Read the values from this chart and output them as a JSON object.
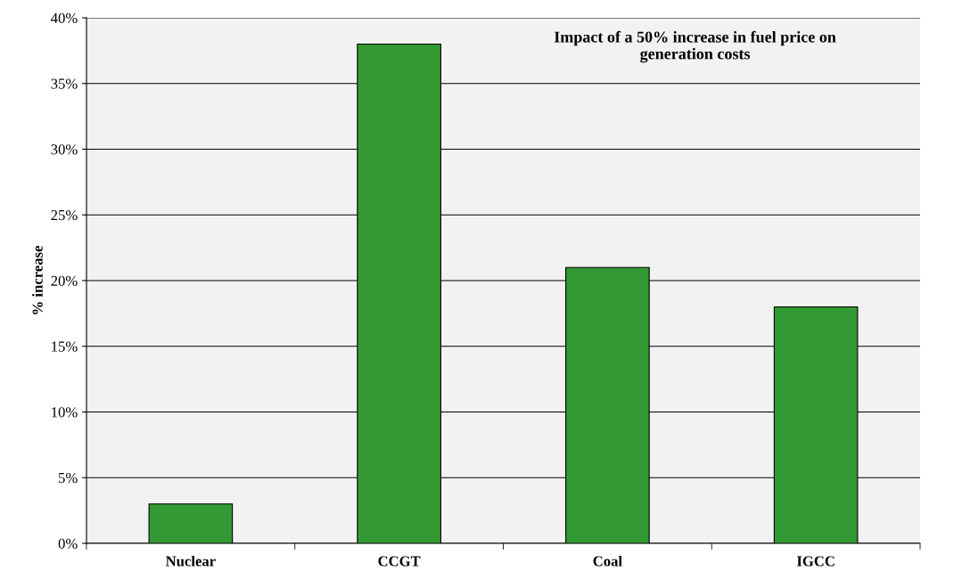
{
  "chart_data": {
    "type": "bar",
    "title": "Impact of a 50% increase in fuel price on\ngeneration costs",
    "ylabel": "% increase",
    "categories": [
      "Nuclear",
      "CCGT",
      "Coal",
      "IGCC"
    ],
    "values": [
      3,
      38,
      21,
      18
    ],
    "color": "#339933",
    "ylim": [
      0,
      40
    ],
    "yticks": [
      {
        "value": 0,
        "label": "0%"
      },
      {
        "value": 5,
        "label": "5%"
      },
      {
        "value": 10,
        "label": "10%"
      },
      {
        "value": 15,
        "label": "15%"
      },
      {
        "value": 20,
        "label": "20%"
      },
      {
        "value": 25,
        "label": "25%"
      },
      {
        "value": 30,
        "label": "30%"
      },
      {
        "value": 35,
        "label": "35%"
      },
      {
        "value": 40,
        "label": "40%"
      }
    ],
    "grid": "y"
  }
}
